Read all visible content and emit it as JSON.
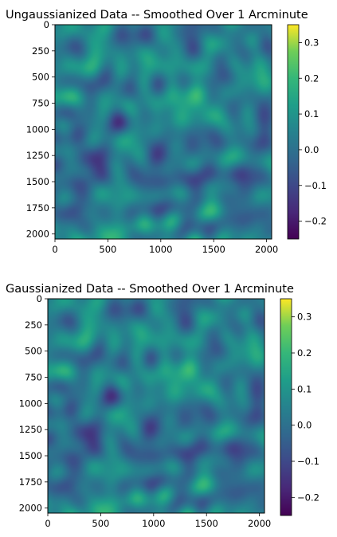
{
  "chart_data": [
    {
      "type": "heatmap",
      "title": "Ungaussianized Data -- Smoothed Over 1 Arcminute",
      "xlabel": "",
      "ylabel": "",
      "x_ticks": [
        "0",
        "500",
        "1000",
        "1500",
        "2000"
      ],
      "y_ticks": [
        "0",
        "250",
        "500",
        "750",
        "1000",
        "1250",
        "1500",
        "1750",
        "2000"
      ],
      "xlim": [
        0,
        2048
      ],
      "ylim": [
        2048,
        0
      ],
      "colorbar": {
        "colormap": "viridis",
        "vmin": -0.25,
        "vmax": 0.35,
        "tick_values": [
          -0.2,
          -0.1,
          0.0,
          0.1,
          0.2,
          0.3
        ],
        "tick_labels": [
          "−0.2",
          "−0.1",
          "0.0",
          "0.1",
          "0.2",
          "0.3"
        ]
      }
    },
    {
      "type": "heatmap",
      "title": "Gaussianized Data -- Smoothed Over 1 Arcminute",
      "xlabel": "",
      "ylabel": "",
      "x_ticks": [
        "0",
        "500",
        "1000",
        "1500",
        "2000"
      ],
      "y_ticks": [
        "0",
        "250",
        "500",
        "750",
        "1000",
        "1250",
        "1500",
        "1750",
        "2000"
      ],
      "xlim": [
        0,
        2048
      ],
      "ylim": [
        2048,
        0
      ],
      "colorbar": {
        "colormap": "viridis",
        "vmin": -0.25,
        "vmax": 0.35,
        "tick_values": [
          -0.2,
          -0.1,
          0.0,
          0.1,
          0.2,
          0.3
        ],
        "tick_labels": [
          "−0.2",
          "−0.1",
          "0.0",
          "0.1",
          "0.2",
          "0.3"
        ]
      }
    }
  ]
}
